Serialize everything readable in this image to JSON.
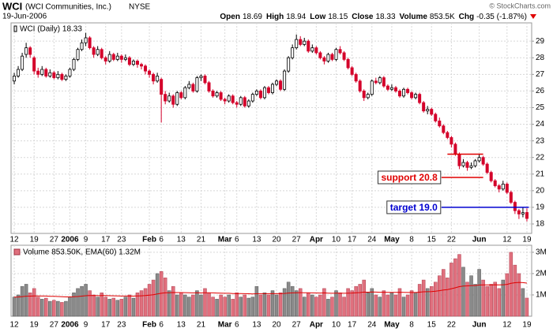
{
  "chart_data": {
    "type": "candlestick",
    "symbol": "WCI",
    "name": "(WCI Communities, Inc.)",
    "exchange": "NYSE",
    "date": "19-Jun-2006",
    "quote": [
      {
        "label": "Open",
        "value": "18.69"
      },
      {
        "label": "High",
        "value": "18.94"
      },
      {
        "label": "Low",
        "value": "18.15"
      },
      {
        "label": "Close",
        "value": "18.33"
      },
      {
        "label": "Volume",
        "value": "853.5K"
      },
      {
        "label": "Chg",
        "value": "-0.35 (-1.87%)"
      }
    ],
    "copyright": "© StockCharts.com",
    "legend": "WCI (Daily) 18.33",
    "volume_legend": "Volume 853.50K, EMA(60) 1.32M",
    "up_color": "#000000",
    "down_color": "#d4002a",
    "volume_up_color": "#8a8a8a",
    "volume_down_color": "#e0707e",
    "ema_color": "#e00000",
    "ema_period": 60,
    "grid": true,
    "xlim": [
      -0.8,
      130.2
    ],
    "xticks": [
      {
        "value": 0,
        "label": "12"
      },
      {
        "value": 5,
        "label": "19"
      },
      {
        "value": 10,
        "label": "27"
      },
      {
        "value": 14,
        "label": "2006"
      },
      {
        "value": 18,
        "label": "9"
      },
      {
        "value": 23,
        "label": "17"
      },
      {
        "value": 27,
        "label": "23"
      },
      {
        "value": 34,
        "label": "Feb"
      },
      {
        "value": 37,
        "label": "6"
      },
      {
        "value": 42,
        "label": "13"
      },
      {
        "value": 47,
        "label": "21"
      },
      {
        "value": 53,
        "label": "Mar"
      },
      {
        "value": 56,
        "label": "6"
      },
      {
        "value": 61,
        "label": "13"
      },
      {
        "value": 66,
        "label": "20"
      },
      {
        "value": 71,
        "label": "27"
      },
      {
        "value": 76,
        "label": "Apr"
      },
      {
        "value": 81,
        "label": "10"
      },
      {
        "value": 85,
        "label": "17"
      },
      {
        "value": 90,
        "label": "24"
      },
      {
        "value": 95,
        "label": "May"
      },
      {
        "value": 100,
        "label": "8"
      },
      {
        "value": 105,
        "label": "15"
      },
      {
        "value": 110,
        "label": "22"
      },
      {
        "value": 117,
        "label": "Jun"
      },
      {
        "value": 124,
        "label": "12"
      },
      {
        "value": 129,
        "label": "19"
      }
    ],
    "ylim": [
      17.43,
      30.1
    ],
    "yticks": [
      18,
      19,
      20,
      21,
      22,
      23,
      24,
      25,
      26,
      27,
      28,
      29
    ],
    "vlim": [
      0,
      3330000
    ],
    "vticks": [
      {
        "value": 1000000,
        "label": "1M"
      },
      {
        "value": 2000000,
        "label": "2M"
      },
      {
        "value": 3000000,
        "label": "3M"
      }
    ],
    "lines": [
      {
        "value": 22.2,
        "color": "#e00000",
        "from": 109,
        "to": 118
      }
    ],
    "annotations": [
      {
        "text": "support 20.8",
        "value": 20.8,
        "color": "#e00000",
        "from": 107.5,
        "to": 118
      },
      {
        "text": "target 19.0",
        "value": 19.0,
        "color": "#0000d0",
        "from": 107.5,
        "to": 129.5
      }
    ],
    "ohlc": [
      [
        26.6,
        27.1,
        26.4,
        26.9
      ],
      [
        26.9,
        27.5,
        26.8,
        27.3
      ],
      [
        27.3,
        28.3,
        27.2,
        28.1
      ],
      [
        28.2,
        28.9,
        28.0,
        28.6
      ],
      [
        28.6,
        28.7,
        28.0,
        28.2
      ],
      [
        28.0,
        28.1,
        27.0,
        27.2
      ],
      [
        27.2,
        27.4,
        26.8,
        27.0
      ],
      [
        27.0,
        27.5,
        26.9,
        27.3
      ],
      [
        27.3,
        27.4,
        26.8,
        26.9
      ],
      [
        26.9,
        27.3,
        26.8,
        27.1
      ],
      [
        27.1,
        27.2,
        26.7,
        26.8
      ],
      [
        26.8,
        27.2,
        26.7,
        27.0
      ],
      [
        27.0,
        27.1,
        26.6,
        26.7
      ],
      [
        26.7,
        27.0,
        26.6,
        26.9
      ],
      [
        26.9,
        27.4,
        26.8,
        27.3
      ],
      [
        27.3,
        28.0,
        27.2,
        27.9
      ],
      [
        27.9,
        28.6,
        27.8,
        28.5
      ],
      [
        28.5,
        29.1,
        28.4,
        28.9
      ],
      [
        28.9,
        29.5,
        28.7,
        29.2
      ],
      [
        29.2,
        29.3,
        28.5,
        28.6
      ],
      [
        28.6,
        28.7,
        28.0,
        28.2
      ],
      [
        28.2,
        28.7,
        28.1,
        28.5
      ],
      [
        28.5,
        28.6,
        27.9,
        28.0
      ],
      [
        28.0,
        28.1,
        27.6,
        27.8
      ],
      [
        27.8,
        28.4,
        27.7,
        28.2
      ],
      [
        28.2,
        28.3,
        27.8,
        27.9
      ],
      [
        27.9,
        28.3,
        27.8,
        28.1
      ],
      [
        28.1,
        28.2,
        27.7,
        27.9
      ],
      [
        27.9,
        28.2,
        27.8,
        28.0
      ],
      [
        28.0,
        28.1,
        27.5,
        27.6
      ],
      [
        27.6,
        27.9,
        27.5,
        27.8
      ],
      [
        27.8,
        27.9,
        27.4,
        27.6
      ],
      [
        27.6,
        27.7,
        27.3,
        27.5
      ],
      [
        27.5,
        27.6,
        27.0,
        27.2
      ],
      [
        27.2,
        27.3,
        26.8,
        27.0
      ],
      [
        27.0,
        27.1,
        26.4,
        26.6
      ],
      [
        26.6,
        27.1,
        26.5,
        26.9
      ],
      [
        26.7,
        26.8,
        24.1,
        25.8
      ],
      [
        25.8,
        26.0,
        25.2,
        25.4
      ],
      [
        25.4,
        25.9,
        25.3,
        25.7
      ],
      [
        25.7,
        25.8,
        25.0,
        25.2
      ],
      [
        25.2,
        26.0,
        25.1,
        25.9
      ],
      [
        25.9,
        26.0,
        25.5,
        25.6
      ],
      [
        25.6,
        26.3,
        25.5,
        26.2
      ],
      [
        26.2,
        26.6,
        26.1,
        26.4
      ],
      [
        26.4,
        26.5,
        25.9,
        26.0
      ],
      [
        26.0,
        26.9,
        25.9,
        26.8
      ],
      [
        26.8,
        27.0,
        26.6,
        26.9
      ],
      [
        26.9,
        27.0,
        26.4,
        26.5
      ],
      [
        26.5,
        26.6,
        25.9,
        26.0
      ],
      [
        26.0,
        26.1,
        25.6,
        25.7
      ],
      [
        25.7,
        26.0,
        25.6,
        25.9
      ],
      [
        25.9,
        26.0,
        25.4,
        25.5
      ],
      [
        25.5,
        25.6,
        25.2,
        25.4
      ],
      [
        25.4,
        25.8,
        25.3,
        25.7
      ],
      [
        25.7,
        25.8,
        25.2,
        25.3
      ],
      [
        25.3,
        25.4,
        25.0,
        25.2
      ],
      [
        25.2,
        25.7,
        25.1,
        25.6
      ],
      [
        25.6,
        25.7,
        25.0,
        25.1
      ],
      [
        25.1,
        25.5,
        25.0,
        25.4
      ],
      [
        25.4,
        25.9,
        25.3,
        25.8
      ],
      [
        25.8,
        26.1,
        25.7,
        26.0
      ],
      [
        26.0,
        26.1,
        25.5,
        25.6
      ],
      [
        25.6,
        26.3,
        25.5,
        26.2
      ],
      [
        26.2,
        26.3,
        25.8,
        25.9
      ],
      [
        25.9,
        26.5,
        25.8,
        26.4
      ],
      [
        26.4,
        26.7,
        26.3,
        26.6
      ],
      [
        26.6,
        26.7,
        26.0,
        26.1
      ],
      [
        26.1,
        27.3,
        26.0,
        27.2
      ],
      [
        27.2,
        28.1,
        27.1,
        28.0
      ],
      [
        28.0,
        28.8,
        27.9,
        28.6
      ],
      [
        28.6,
        29.4,
        28.5,
        29.1
      ],
      [
        29.1,
        29.3,
        28.7,
        28.8
      ],
      [
        28.8,
        29.2,
        28.7,
        29.0
      ],
      [
        29.0,
        29.1,
        28.3,
        28.4
      ],
      [
        28.4,
        28.8,
        28.3,
        28.6
      ],
      [
        28.6,
        28.7,
        28.2,
        28.3
      ],
      [
        28.3,
        28.4,
        27.9,
        28.0
      ],
      [
        28.0,
        28.1,
        27.6,
        27.8
      ],
      [
        27.8,
        28.3,
        27.7,
        28.2
      ],
      [
        28.2,
        28.3,
        27.8,
        27.9
      ],
      [
        27.9,
        28.6,
        27.8,
        28.5
      ],
      [
        28.5,
        28.7,
        28.2,
        28.3
      ],
      [
        28.3,
        28.4,
        27.8,
        27.9
      ],
      [
        27.9,
        28.0,
        27.3,
        27.4
      ],
      [
        27.4,
        27.5,
        26.9,
        27.0
      ],
      [
        27.0,
        27.1,
        26.5,
        26.6
      ],
      [
        26.6,
        26.7,
        25.9,
        26.0
      ],
      [
        26.0,
        26.1,
        25.4,
        25.6
      ],
      [
        25.6,
        25.9,
        25.5,
        25.8
      ],
      [
        25.8,
        26.7,
        25.7,
        26.6
      ],
      [
        26.6,
        26.8,
        26.4,
        26.5
      ],
      [
        26.5,
        26.9,
        26.4,
        26.8
      ],
      [
        26.8,
        26.9,
        26.2,
        26.3
      ],
      [
        26.3,
        26.4,
        26.0,
        26.1
      ],
      [
        26.1,
        26.4,
        26.0,
        26.2
      ],
      [
        26.2,
        26.3,
        25.9,
        26.0
      ],
      [
        26.0,
        26.1,
        25.6,
        25.7
      ],
      [
        25.7,
        26.2,
        25.6,
        26.1
      ],
      [
        26.1,
        26.2,
        25.8,
        25.9
      ],
      [
        25.9,
        26.0,
        25.5,
        25.6
      ],
      [
        25.6,
        25.9,
        25.5,
        25.8
      ],
      [
        25.8,
        25.9,
        25.2,
        25.3
      ],
      [
        25.3,
        25.4,
        24.7,
        24.8
      ],
      [
        24.8,
        25.1,
        24.6,
        24.9
      ],
      [
        24.9,
        25.0,
        24.5,
        24.6
      ],
      [
        24.6,
        24.7,
        24.1,
        24.2
      ],
      [
        24.2,
        24.4,
        23.8,
        23.9
      ],
      [
        23.9,
        24.0,
        23.4,
        23.5
      ],
      [
        23.5,
        23.6,
        23.1,
        23.2
      ],
      [
        23.2,
        23.3,
        22.6,
        22.8
      ],
      [
        22.8,
        22.9,
        22.1,
        22.2
      ],
      [
        22.2,
        22.3,
        21.3,
        21.5
      ],
      [
        21.5,
        21.9,
        21.4,
        21.7
      ],
      [
        21.7,
        21.8,
        21.2,
        21.4
      ],
      [
        21.4,
        21.7,
        21.3,
        21.5
      ],
      [
        21.5,
        21.9,
        21.4,
        21.8
      ],
      [
        21.8,
        22.2,
        21.7,
        22.0
      ],
      [
        22.0,
        22.1,
        21.5,
        21.6
      ],
      [
        21.6,
        21.7,
        21.0,
        21.1
      ],
      [
        21.1,
        21.2,
        20.5,
        20.6
      ],
      [
        20.6,
        20.7,
        20.2,
        20.3
      ],
      [
        20.3,
        20.4,
        19.9,
        20.1
      ],
      [
        20.1,
        20.6,
        20.0,
        20.4
      ],
      [
        20.4,
        20.5,
        19.8,
        19.9
      ],
      [
        19.9,
        20.0,
        19.2,
        19.3
      ],
      [
        19.3,
        19.4,
        18.6,
        18.8
      ],
      [
        18.8,
        18.9,
        18.3,
        18.6
      ],
      [
        18.6,
        19.0,
        18.4,
        18.68
      ],
      [
        18.69,
        18.94,
        18.15,
        18.33
      ]
    ],
    "volume": [
      900000,
      1000000,
      1400000,
      1500000,
      1100000,
      1300000,
      900000,
      800000,
      850000,
      700000,
      750000,
      700000,
      650000,
      700000,
      900000,
      1100000,
      1300000,
      1400000,
      1500000,
      1200000,
      1000000,
      900000,
      1100000,
      900000,
      800000,
      850000,
      750000,
      800000,
      900000,
      1000000,
      850000,
      1100000,
      1200000,
      1300000,
      1500000,
      1700000,
      2000000,
      2100000,
      1800000,
      1200000,
      1400000,
      1000000,
      1100000,
      1000000,
      900000,
      1000000,
      1200000,
      1000000,
      1300000,
      1100000,
      900000,
      800000,
      1000000,
      900000,
      1000000,
      800000,
      1100000,
      900000,
      1000000,
      850000,
      900000,
      1400000,
      1000000,
      1100000,
      1000000,
      1200000,
      1000000,
      1100000,
      1300000,
      1600000,
      1400000,
      1200000,
      1300000,
      900000,
      1100000,
      1000000,
      900000,
      1000000,
      1300000,
      800000,
      900000,
      1200000,
      1100000,
      900000,
      1300000,
      1200000,
      1400000,
      1500000,
      1700000,
      1100000,
      1300000,
      1000000,
      900000,
      1200000,
      1000000,
      1100000,
      1000000,
      1300000,
      900000,
      1000000,
      1200000,
      1100000,
      1500000,
      1700000,
      1300000,
      1400000,
      1600000,
      1900000,
      2200000,
      1800000,
      2500000,
      2700000,
      2900000,
      2300000,
      1600000,
      1900000,
      1500000,
      2200000,
      1700000,
      1400000,
      1500000,
      1600000,
      1300000,
      1700000,
      2000000,
      3000000,
      2400000,
      2000000,
      1300000,
      853500
    ]
  }
}
